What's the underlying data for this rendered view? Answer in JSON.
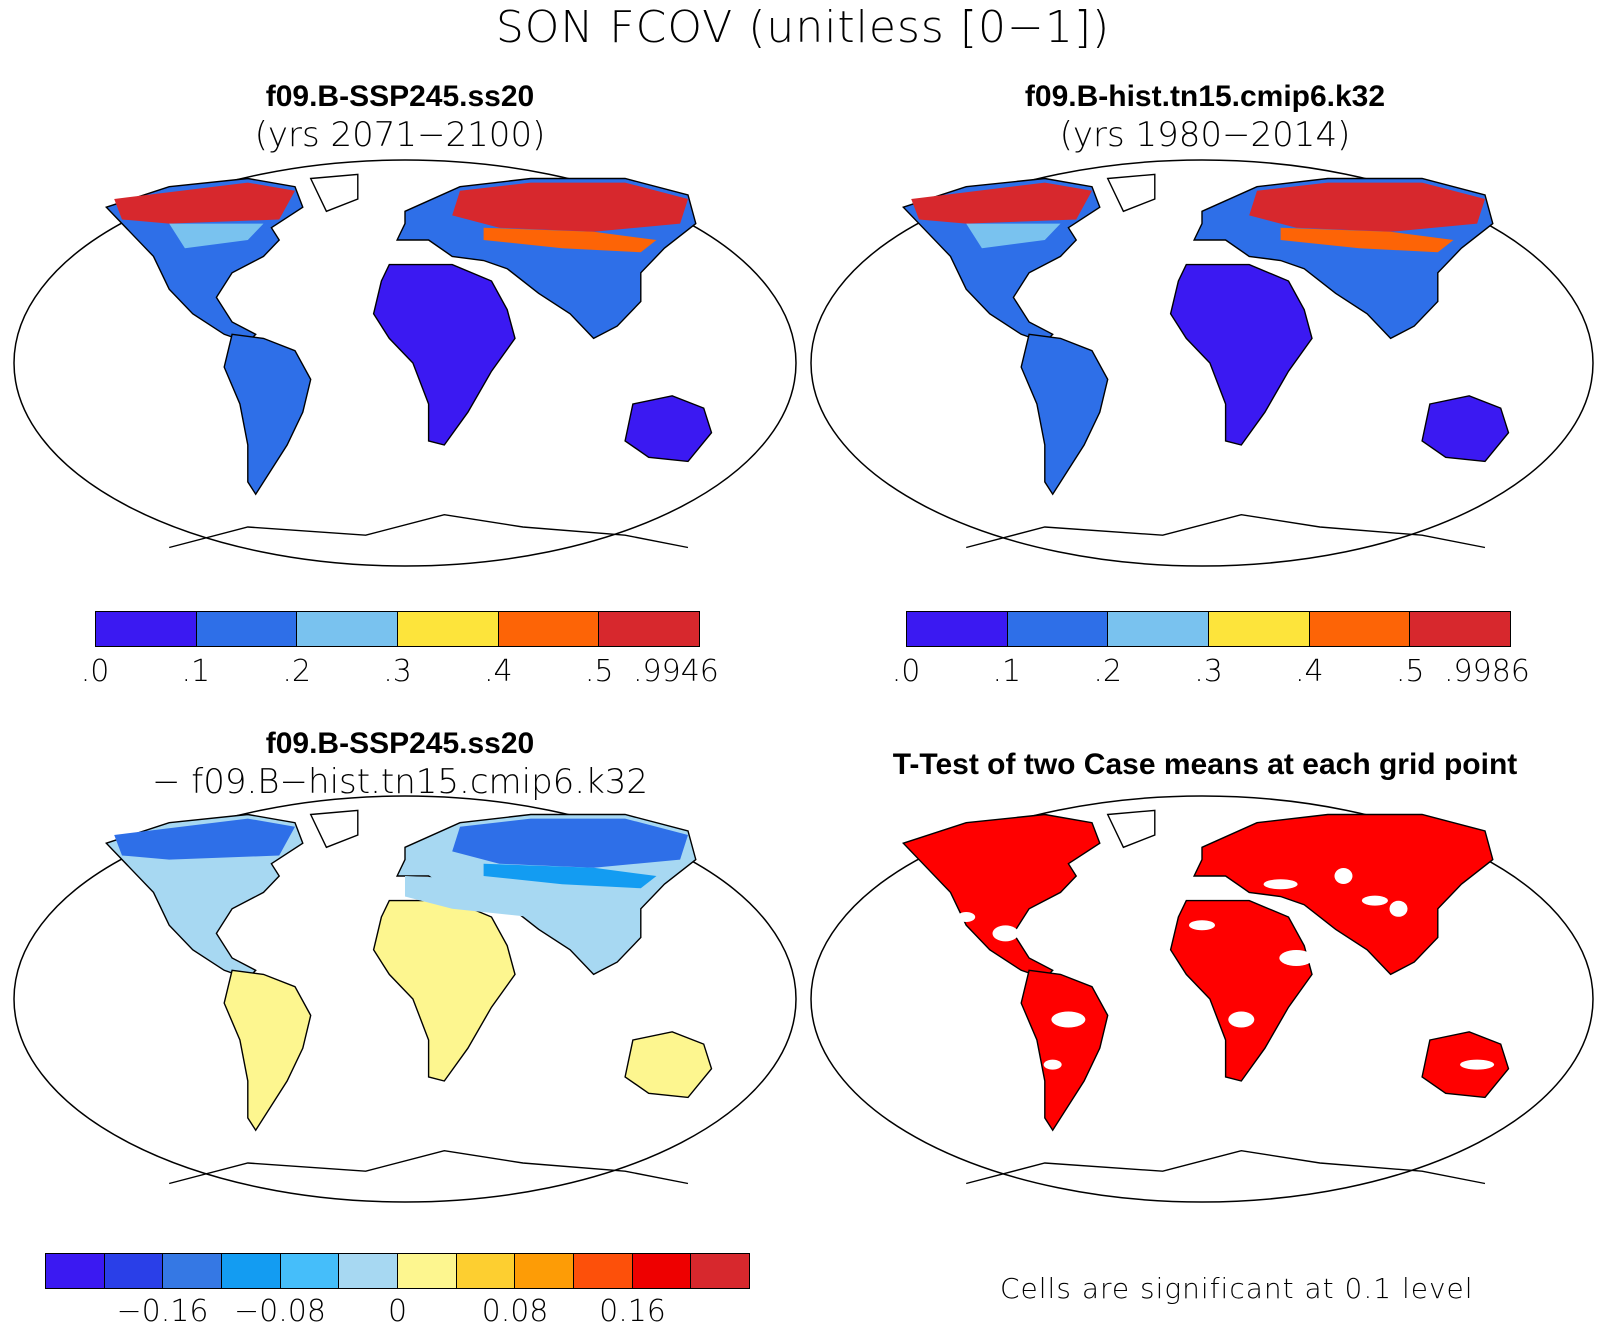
{
  "figure": {
    "title": "SON FCOV (unitless [0−1])"
  },
  "panels": [
    {
      "id": "case1",
      "title_line1": "f09.B-SSP245.ss20",
      "title_line2": "(yrs 2071−2100)",
      "colorbar": {
        "colors": [
          "#3b19f2",
          "#2e6fe8",
          "#79c2ef",
          "#fde43b",
          "#fd6406",
          "#d7282d"
        ],
        "tick_labels": [
          ".0",
          ".1",
          ".2",
          ".3",
          ".4",
          ".5",
          ".9946"
        ]
      }
    },
    {
      "id": "case2",
      "title_line1": "f09.B-hist.tn15.cmip6.k32",
      "title_line2": "(yrs 1980−2014)",
      "colorbar": {
        "colors": [
          "#3b19f2",
          "#2e6fe8",
          "#79c2ef",
          "#fde43b",
          "#fd6406",
          "#d7282d"
        ],
        "tick_labels": [
          ".0",
          ".1",
          ".2",
          ".3",
          ".4",
          ".5",
          ".9986"
        ]
      }
    },
    {
      "id": "difference",
      "title_line1": "f09.B-SSP245.ss20",
      "title_line2": "− f09.B−hist.tn15.cmip6.k32",
      "colorbar": {
        "colors": [
          "#3b19f2",
          "#2a3fe8",
          "#3578e4",
          "#139cf2",
          "#45befa",
          "#a7d8f2",
          "#fdf68f",
          "#fdcf30",
          "#fd9c06",
          "#fd500a",
          "#ee0000",
          "#d7282d"
        ],
        "tick_labels": [
          "−0.16",
          "−0.08",
          "0",
          "0.08",
          "0.16"
        ]
      }
    },
    {
      "id": "ttest",
      "title_line1": "T-Test of two Case means at each grid point",
      "note": "Cells are significant at 0.1 level",
      "significant_color": "#ff0000"
    }
  ]
}
